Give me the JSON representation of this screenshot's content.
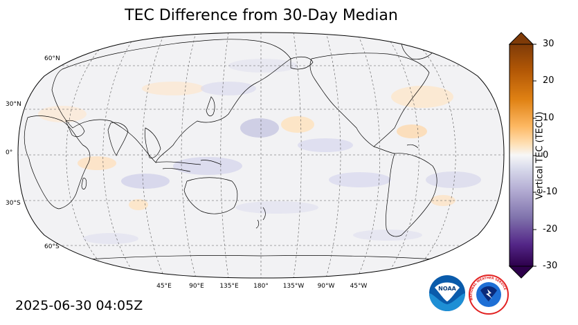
{
  "title": "TEC Difference from 30-Day Median",
  "timestamp": "2025-06-30 04:05Z",
  "map": {
    "projection": "Robinson",
    "central_longitude": 180,
    "gridlines": "dashed",
    "lat_labels": [
      {
        "id": "60n",
        "text": "60°N"
      },
      {
        "id": "30n",
        "text": "30°N"
      },
      {
        "id": "0",
        "text": "0°"
      },
      {
        "id": "30s",
        "text": "30°S"
      },
      {
        "id": "60s",
        "text": "60°S"
      }
    ],
    "lon_labels": [
      {
        "id": "45e",
        "text": "45°E"
      },
      {
        "id": "90e",
        "text": "90°E"
      },
      {
        "id": "135e",
        "text": "135°E"
      },
      {
        "id": "180",
        "text": "180°"
      },
      {
        "id": "135w",
        "text": "135°W"
      },
      {
        "id": "90w",
        "text": "90°W"
      },
      {
        "id": "45w",
        "text": "45°W"
      }
    ]
  },
  "colorbar": {
    "label": "Vertical TEC (TECU)",
    "min": -30,
    "max": 30,
    "ticks": [
      "30",
      "20",
      "10",
      "0",
      "-10",
      "-20",
      "-30"
    ],
    "colormap": "PuOr_r",
    "extend": "both",
    "colors": {
      "low": "#2d004b",
      "mid": "#f7f7f7",
      "high": "#7f3b08"
    }
  },
  "logos": {
    "noaa_text": "NOAA",
    "nws_text": "NATIONAL WEATHER SERVICE",
    "noaa_color": "#0a5bab",
    "nws_color": "#e22121"
  }
}
